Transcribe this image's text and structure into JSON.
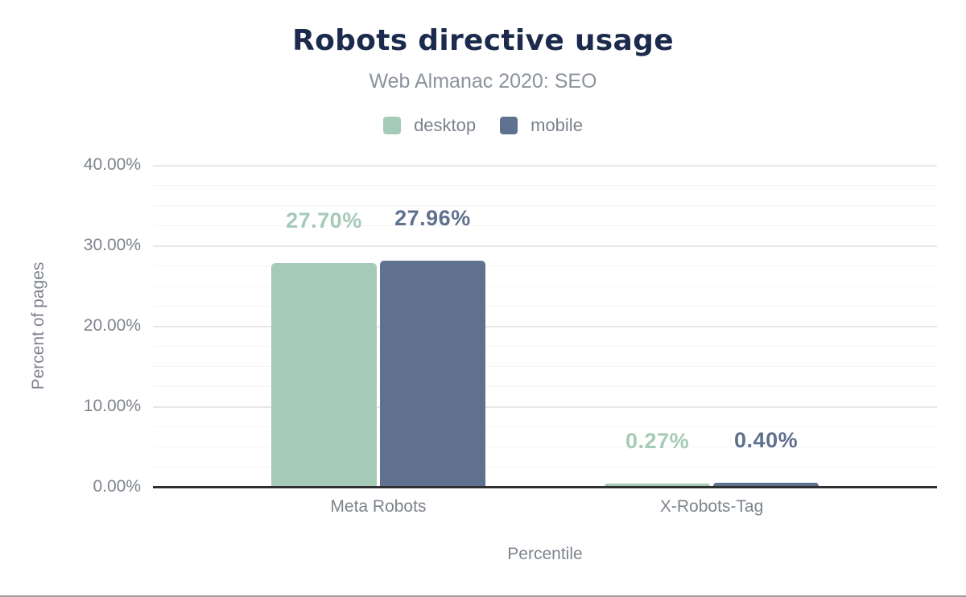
{
  "header": {
    "title": "Robots directive usage",
    "subtitle": "Web Almanac 2020: SEO"
  },
  "legend": {
    "position": "top",
    "items": [
      {
        "label": "desktop",
        "color": "#a6cab8"
      },
      {
        "label": "mobile",
        "color": "#5f718e"
      }
    ]
  },
  "axes": {
    "y_title": "Percent of pages",
    "x_title": "Percentile"
  },
  "colors": {
    "title_text": "#1c2b4d",
    "subtitle_text": "#8d939c",
    "axis_text": "#7e838d",
    "gridline_major": "#e7e7e7",
    "gridline_minor": "#f5f5f5",
    "axis_line": "#2f2f2f",
    "frame_bottom_border": "#9b9b9b"
  },
  "chart_data": {
    "type": "bar",
    "title": "Robots directive usage",
    "subtitle": "Web Almanac 2020: SEO",
    "categories": [
      "Meta Robots",
      "X-Robots-Tag"
    ],
    "series": [
      {
        "name": "desktop",
        "color": "#a6cab8",
        "values": [
          27.7,
          0.27
        ],
        "labels": [
          "27.70%",
          "0.27%"
        ]
      },
      {
        "name": "mobile",
        "color": "#5f718e",
        "values": [
          27.96,
          0.4
        ],
        "labels": [
          "27.96%",
          "0.40%"
        ]
      }
    ],
    "xlabel": "Percentile",
    "ylabel": "Percent of pages",
    "ylim": [
      0,
      40
    ],
    "yticks": [
      {
        "value": 0,
        "label": "0.00%"
      },
      {
        "value": 10,
        "label": "10.00%"
      },
      {
        "value": 20,
        "label": "20.00%"
      },
      {
        "value": 30,
        "label": "30.00%"
      },
      {
        "value": 40,
        "label": "40.00%"
      }
    ],
    "grid": {
      "major_step": 10,
      "minor_step": 2.5,
      "on": true
    },
    "legend_position": "top"
  }
}
